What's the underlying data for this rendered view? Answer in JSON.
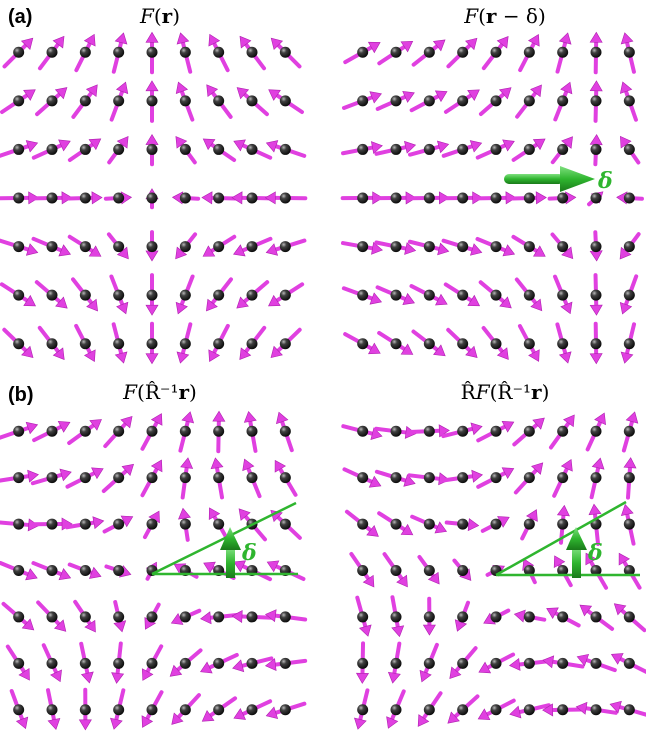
{
  "panels": {
    "a": {
      "label": "(a)"
    },
    "b": {
      "label": "(b)"
    }
  },
  "titles": {
    "a_left": {
      "pre": "",
      "script": "F",
      "arg_open": "(",
      "arg_bold": "r",
      "arg_rest": ")"
    },
    "a_right": {
      "pre": "",
      "script": "F",
      "arg_open": "(",
      "arg_bold": "r",
      "arg_rest": " − δ)"
    },
    "b_left": {
      "pre": "",
      "script": "F",
      "arg_open": "(R̂⁻¹",
      "arg_bold": "r",
      "arg_rest": ")"
    },
    "b_right": {
      "pre": "R̂",
      "script": "F",
      "arg_open": "(R̂⁻¹",
      "arg_bold": "r",
      "arg_rest": ")"
    }
  },
  "annotations": {
    "delta_symbol": "δ"
  },
  "colors": {
    "arrow": "#e040e0",
    "arrow_dark": "#b020b0",
    "ball": "#1a1a1a",
    "ball_highlight": "#9a9a9a",
    "green": "#2fb52f"
  },
  "fields": [
    {
      "id": "a-left",
      "vortex": [
        0.235,
        0.27
      ],
      "rot": 0,
      "kind": "source-sink"
    },
    {
      "id": "a-right",
      "vortex": [
        0.6,
        0.27
      ],
      "rot": 0,
      "kind": "source-sink",
      "shifted": true
    },
    {
      "id": "b-left",
      "vortex": [
        0.24,
        0.78
      ],
      "rot": 0,
      "kind": "rotated-args"
    },
    {
      "id": "b-right",
      "vortex": [
        0.76,
        0.78
      ],
      "rot": 30,
      "kind": "rotated-full"
    }
  ]
}
